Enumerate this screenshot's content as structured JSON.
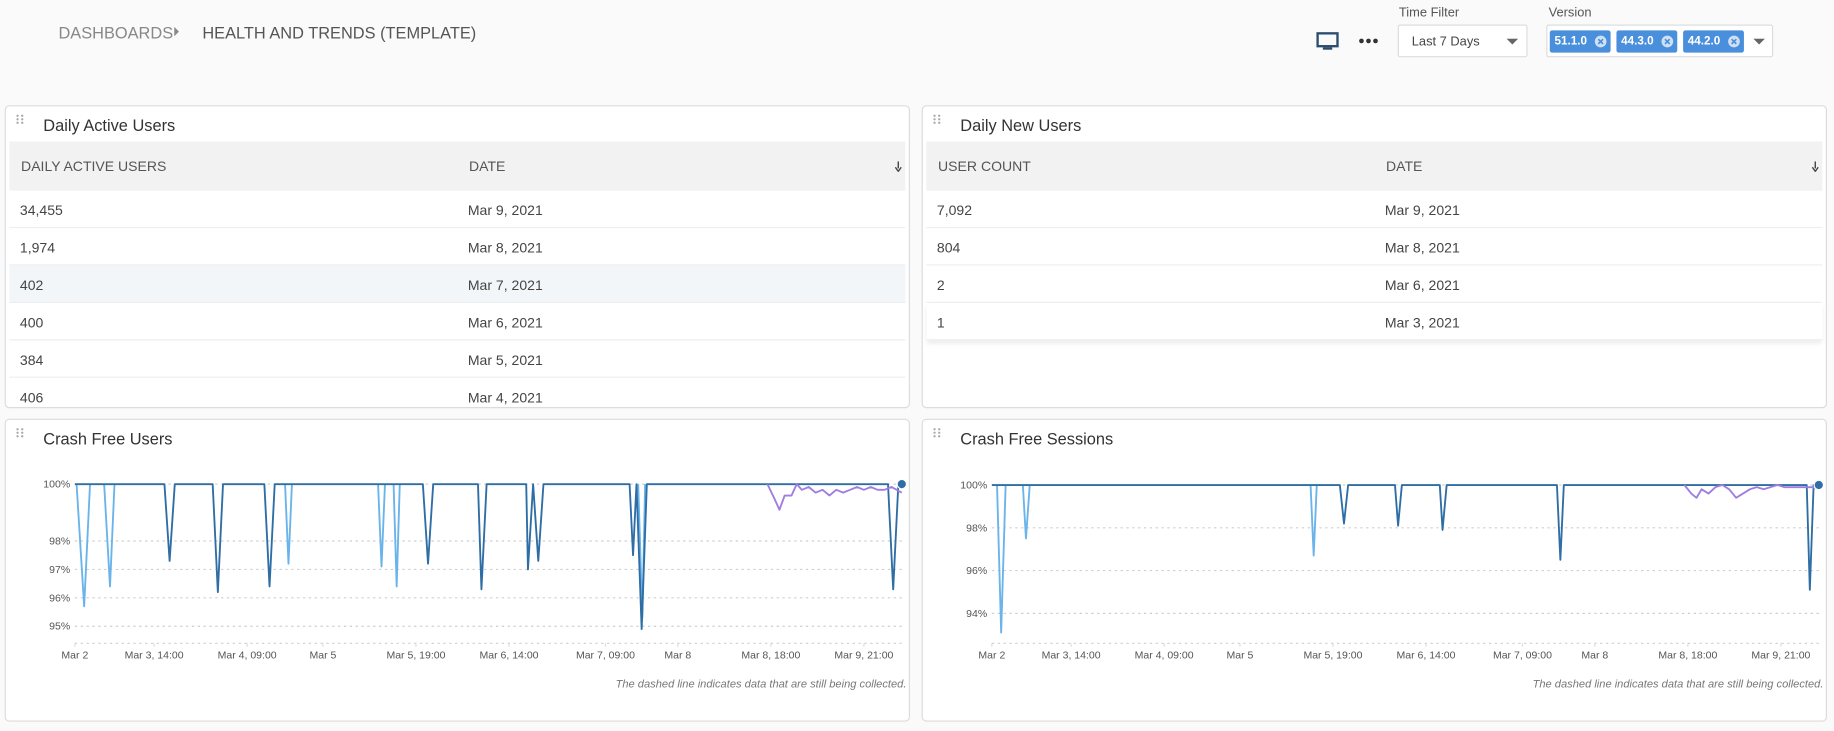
{
  "header": {
    "breadcrumb": [
      "DASHBOARDS",
      "HEALTH AND TRENDS (TEMPLATE)"
    ],
    "time_filter": {
      "label": "Time Filter",
      "value": "Last 7 Days"
    },
    "version": {
      "label": "Version",
      "chips": [
        "51.1.0",
        "44.3.0",
        "44.2.0"
      ]
    }
  },
  "tables": [
    {
      "title": "Daily Active Users",
      "columns": [
        "DAILY ACTIVE USERS",
        "DATE"
      ],
      "rows": [
        [
          "34,455",
          "Mar 9, 2021"
        ],
        [
          "1,974",
          "Mar 8, 2021"
        ],
        [
          "402",
          "Mar 7, 2021"
        ],
        [
          "400",
          "Mar 6, 2021"
        ],
        [
          "384",
          "Mar 5, 2021"
        ],
        [
          "406",
          "Mar 4, 2021"
        ]
      ]
    },
    {
      "title": "Daily New Users",
      "columns": [
        "USER COUNT",
        "DATE"
      ],
      "rows": [
        [
          "7,092",
          "Mar 9, 2021"
        ],
        [
          "804",
          "Mar 8, 2021"
        ],
        [
          "2",
          "Mar 6, 2021"
        ],
        [
          "1",
          "Mar 3, 2021"
        ]
      ]
    }
  ],
  "chart_data": [
    {
      "type": "line",
      "title": "Crash Free Users",
      "footnote": "The dashed line indicates data that are still being collected.",
      "xlim": [
        0,
        240
      ],
      "ylim": [
        94.4,
        100.12
      ],
      "yticks": [
        {
          "value": 95,
          "label": "95%"
        },
        {
          "value": 96,
          "label": "96%"
        },
        {
          "value": 97,
          "label": "97%"
        },
        {
          "value": 98,
          "label": "98%"
        },
        {
          "value": 100,
          "label": "100%"
        }
      ],
      "xticks": [
        {
          "value": 0,
          "label": "Mar 2"
        },
        {
          "value": 23,
          "label": "Mar 3, 14:00"
        },
        {
          "value": 50,
          "label": "Mar 4, 09:00"
        },
        {
          "value": 72,
          "label": "Mar 5"
        },
        {
          "value": 99,
          "label": "Mar 5, 19:00"
        },
        {
          "value": 126,
          "label": "Mar 6, 14:00"
        },
        {
          "value": 154,
          "label": "Mar 7, 09:00"
        },
        {
          "value": 175,
          "label": "Mar 8"
        },
        {
          "value": 202,
          "label": "Mar 8, 18:00"
        },
        {
          "value": 229,
          "label": "Mar 9, 21:00"
        }
      ],
      "grid": true,
      "series": [
        {
          "color": "#6ab4ea",
          "x": [
            0.5,
            2.7,
            4.4,
            null,
            8.5,
            10.2,
            11.5,
            null,
            61,
            62,
            63,
            null,
            88,
            89,
            90,
            null,
            92.5,
            93.4,
            94.3,
            null,
            163.5,
            164.7,
            165.5
          ],
          "values": [
            100,
            95.7,
            100,
            null,
            100,
            96.4,
            100,
            null,
            100,
            97.2,
            100,
            null,
            100,
            97.1,
            100,
            null,
            100,
            96.4,
            100,
            null,
            100,
            95.3,
            100
          ]
        },
        {
          "color": "#2f6ea5",
          "x": [
            0,
            26,
            27.5,
            29,
            40,
            41.5,
            43,
            55,
            56.5,
            58,
            101,
            102.5,
            104,
            117,
            118,
            119.5,
            131,
            131.5,
            133,
            134.5,
            136,
            161,
            162,
            163,
            164.5,
            166,
            236,
            237.5,
            239,
            240
          ],
          "values": [
            100,
            100,
            97.3,
            100,
            100,
            96.2,
            100,
            100,
            96.4,
            100,
            100,
            97.2,
            100,
            100,
            96.3,
            100,
            100,
            97.0,
            100,
            97.3,
            100,
            100,
            97.5,
            100,
            94.9,
            100,
            100,
            96.3,
            100,
            100
          ]
        },
        {
          "color": "#a07de0",
          "x": [
            201,
            203,
            204.5,
            206,
            208,
            209.5,
            211,
            213,
            215,
            217,
            219,
            221,
            223,
            225,
            227,
            229,
            231,
            233,
            235,
            237,
            240
          ],
          "values": [
            100,
            99.5,
            99.1,
            99.6,
            99.6,
            100,
            99.8,
            99.9,
            99.7,
            99.8,
            99.6,
            99.8,
            99.7,
            99.8,
            99.9,
            99.8,
            99.9,
            99.8,
            99.8,
            99.9,
            99.7
          ]
        }
      ]
    },
    {
      "type": "line",
      "title": "Crash Free Sessions",
      "footnote": "The dashed line indicates data that are still being collected.",
      "xlim": [
        0,
        240
      ],
      "ylim": [
        92.6,
        100.2
      ],
      "yticks": [
        {
          "value": 94,
          "label": "94%"
        },
        {
          "value": 96,
          "label": "96%"
        },
        {
          "value": 98,
          "label": "98%"
        },
        {
          "value": 100,
          "label": "100%"
        }
      ],
      "xticks": [
        {
          "value": 0,
          "label": "Mar 2"
        },
        {
          "value": 23,
          "label": "Mar 3, 14:00"
        },
        {
          "value": 50,
          "label": "Mar 4, 09:00"
        },
        {
          "value": 72,
          "label": "Mar 5"
        },
        {
          "value": 99,
          "label": "Mar 5, 19:00"
        },
        {
          "value": 126,
          "label": "Mar 6, 14:00"
        },
        {
          "value": 154,
          "label": "Mar 7, 09:00"
        },
        {
          "value": 175,
          "label": "Mar 8"
        },
        {
          "value": 202,
          "label": "Mar 8, 18:00"
        },
        {
          "value": 229,
          "label": "Mar 9, 21:00"
        }
      ],
      "grid": true,
      "series": [
        {
          "color": "#6ab4ea",
          "x": [
            1.5,
            2.7,
            4,
            null,
            9,
            9.9,
            11,
            null,
            92.5,
            93.4,
            94.3
          ],
          "values": [
            100,
            93.1,
            100,
            null,
            100,
            97.5,
            100,
            null,
            100,
            96.7,
            100
          ]
        },
        {
          "color": "#2f6ea5",
          "x": [
            0,
            101,
            102.2,
            103.4,
            117,
            117.9,
            119,
            130,
            130.8,
            132,
            164,
            165,
            166,
            236.5,
            237.4,
            238.5,
            240
          ],
          "values": [
            100,
            100,
            98.2,
            100,
            100,
            98.1,
            100,
            100,
            97.9,
            100,
            100,
            96.5,
            100,
            100,
            95.1,
            100,
            100
          ]
        },
        {
          "color": "#a07de0",
          "x": [
            201,
            203,
            204.5,
            206,
            208,
            210,
            212,
            214,
            216,
            218,
            220,
            222,
            224,
            226,
            228,
            230,
            232,
            234,
            236,
            238,
            240
          ],
          "values": [
            100,
            99.6,
            99.4,
            99.8,
            99.6,
            99.9,
            100,
            99.8,
            99.4,
            99.6,
            99.8,
            99.9,
            99.8,
            99.9,
            100,
            99.9,
            99.9,
            99.9,
            99.9,
            99.9,
            99.8
          ]
        }
      ]
    }
  ]
}
